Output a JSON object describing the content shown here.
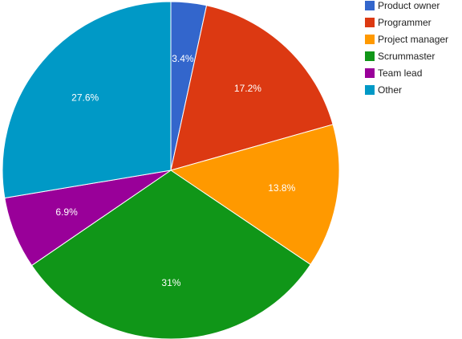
{
  "chart_data": {
    "type": "pie",
    "categories": [
      "Product owner",
      "Programmer",
      "Project manager",
      "Scrummaster",
      "Team lead",
      "Other"
    ],
    "values": [
      3.4,
      17.2,
      13.8,
      31,
      6.9,
      27.6
    ],
    "data_labels": [
      "3.4%",
      "17.2%",
      "13.8%",
      "31%",
      "6.9%",
      "27.6%"
    ],
    "colors": [
      "#3366cc",
      "#dc3912",
      "#ff9900",
      "#109618",
      "#990099",
      "#0099c6"
    ],
    "legend_position": "right",
    "start_angle": "top",
    "direction": "clockwise"
  }
}
